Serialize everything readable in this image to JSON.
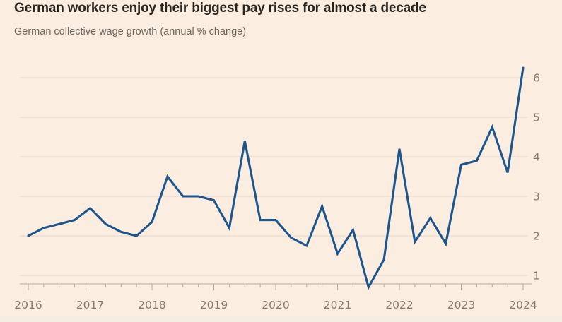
{
  "header": {
    "title": "German workers enjoy their biggest pay rises for almost a decade",
    "subtitle": "German collective wage growth (annual % change)"
  },
  "chart_data": {
    "type": "line",
    "title": "German workers enjoy their biggest pay rises for almost a decade",
    "subtitle": "German collective wage growth (annual % change)",
    "x_start_year": 2016,
    "points_per_quarter": true,
    "x": [
      "2016 Q1",
      "2016 Q2",
      "2016 Q3",
      "2016 Q4",
      "2017 Q1",
      "2017 Q2",
      "2017 Q3",
      "2017 Q4",
      "2018 Q1",
      "2018 Q2",
      "2018 Q3",
      "2018 Q4",
      "2019 Q1",
      "2019 Q2",
      "2019 Q3",
      "2019 Q4",
      "2020 Q1",
      "2020 Q2",
      "2020 Q3",
      "2020 Q4",
      "2021 Q1",
      "2021 Q2",
      "2021 Q3",
      "2021 Q4",
      "2022 Q1",
      "2022 Q2",
      "2022 Q3",
      "2022 Q4",
      "2023 Q1",
      "2023 Q2",
      "2023 Q3",
      "2023 Q4",
      "2024 Q1"
    ],
    "values": [
      2.0,
      2.2,
      2.3,
      2.4,
      2.7,
      2.3,
      2.1,
      2.0,
      2.35,
      3.5,
      3.0,
      3.0,
      2.9,
      2.2,
      4.4,
      2.4,
      2.4,
      1.95,
      1.75,
      2.75,
      1.55,
      2.15,
      0.7,
      1.4,
      4.2,
      1.85,
      2.45,
      1.8,
      3.8,
      3.9,
      4.75,
      3.6,
      6.25
    ],
    "series_name": "German collective wage growth",
    "xlabel": "",
    "ylabel": "",
    "xticks": [
      2016,
      2017,
      2018,
      2019,
      2020,
      2021,
      2022,
      2023,
      2024
    ],
    "yticks": [
      1,
      2,
      3,
      4,
      5,
      6
    ],
    "ylim": [
      0.6,
      6.5
    ],
    "grid": "horizontal",
    "legend_position": "none",
    "y_axis_side": "right"
  },
  "colors": {
    "background": "#fbeee0",
    "line": "#1d568e",
    "grid": "#e9dccc",
    "axis": "#b5ab9f",
    "tick_label": "#857c70",
    "title": "#2b2520",
    "subtitle": "#6e665d"
  }
}
